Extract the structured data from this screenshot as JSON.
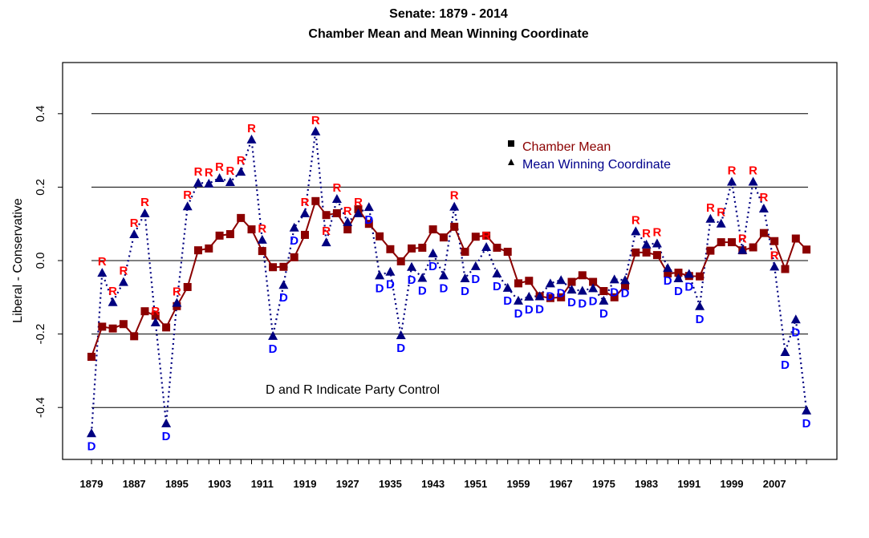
{
  "chart_data": {
    "type": "line",
    "title": "Senate: 1879 - 2014",
    "subtitle": "Chamber Mean and Mean Winning Coordinate",
    "xlabel": "",
    "ylabel": "Liberal - Conservative",
    "ylim": [
      -0.53,
      0.53
    ],
    "yticks": [
      -0.4,
      -0.2,
      0.0,
      0.2,
      0.4
    ],
    "ytick_labels": [
      "-0.4",
      "-0.2",
      "0.0",
      "0.2",
      "0.4"
    ],
    "xtick_labels": [
      "1879",
      "1887",
      "1895",
      "1903",
      "1911",
      "1919",
      "1927",
      "1935",
      "1943",
      "1951",
      "1959",
      "1967",
      "1975",
      "1983",
      "1991",
      "1999",
      "2007"
    ],
    "grid": "horizontal",
    "annotation": "D and R Indicate Party Control",
    "legend": {
      "placement": "top-right",
      "entries": [
        {
          "label": "Chamber Mean",
          "marker": "square",
          "color": "#8B0000"
        },
        {
          "label": "Mean Winning Coordinate",
          "marker": "triangle",
          "color": "#00008B"
        }
      ]
    },
    "colors": {
      "chamber_mean": "#8B0000",
      "mwc": "#000080",
      "party_R": "#FF0000",
      "party_D": "#0000FF",
      "grid": "#000000"
    },
    "x": [
      1879,
      1881,
      1883,
      1885,
      1887,
      1889,
      1891,
      1893,
      1895,
      1897,
      1899,
      1901,
      1903,
      1905,
      1907,
      1909,
      1911,
      1913,
      1915,
      1917,
      1919,
      1921,
      1923,
      1925,
      1927,
      1929,
      1931,
      1933,
      1935,
      1937,
      1939,
      1941,
      1943,
      1945,
      1947,
      1949,
      1951,
      1953,
      1955,
      1957,
      1959,
      1961,
      1963,
      1965,
      1967,
      1969,
      1971,
      1973,
      1975,
      1977,
      1979,
      1981,
      1983,
      1985,
      1987,
      1989,
      1991,
      1993,
      1995,
      1997,
      1999,
      2001,
      2003,
      2005,
      2007,
      2009,
      2011,
      2013
    ],
    "series": [
      {
        "name": "Chamber Mean",
        "values": [
          -0.262,
          -0.18,
          -0.185,
          -0.173,
          -0.206,
          -0.138,
          -0.15,
          -0.182,
          -0.124,
          -0.072,
          0.028,
          0.033,
          0.068,
          0.072,
          0.116,
          0.085,
          0.026,
          -0.018,
          -0.017,
          0.009,
          0.07,
          0.162,
          0.124,
          0.129,
          0.085,
          0.14,
          0.1,
          0.066,
          0.031,
          -0.002,
          0.033,
          0.035,
          0.085,
          0.063,
          0.092,
          0.024,
          0.065,
          0.068,
          0.035,
          0.024,
          -0.062,
          -0.055,
          -0.097,
          -0.102,
          -0.1,
          -0.058,
          -0.04,
          -0.058,
          -0.083,
          -0.1,
          -0.069,
          0.022,
          0.022,
          0.015,
          -0.035,
          -0.033,
          -0.042,
          -0.043,
          0.027,
          0.05,
          0.05,
          0.028,
          0.036,
          0.075,
          0.053,
          -0.023,
          0.06,
          0.03
        ]
      },
      {
        "name": "Mean Winning Coordinate",
        "values": [
          -0.47,
          -0.033,
          -0.113,
          -0.058,
          0.072,
          0.129,
          -0.168,
          -0.443,
          -0.115,
          0.148,
          0.212,
          0.21,
          0.225,
          0.214,
          0.242,
          0.33,
          0.057,
          -0.205,
          -0.066,
          0.09,
          0.129,
          0.352,
          0.05,
          0.168,
          0.105,
          0.129,
          0.146,
          -0.04,
          -0.03,
          -0.203,
          -0.017,
          -0.047,
          0.02,
          -0.04,
          0.147,
          -0.048,
          -0.015,
          0.037,
          -0.035,
          -0.074,
          -0.109,
          -0.098,
          -0.097,
          -0.062,
          -0.053,
          -0.079,
          -0.082,
          -0.075,
          -0.109,
          -0.051,
          -0.053,
          0.08,
          0.044,
          0.047,
          -0.02,
          -0.048,
          -0.036,
          -0.124,
          0.114,
          0.101,
          0.215,
          0.029,
          0.215,
          0.142,
          -0.016,
          -0.249,
          -0.16,
          -0.408
        ]
      }
    ],
    "party_control": [
      "D",
      "R",
      "R",
      "R",
      "R",
      "R",
      "R",
      "D",
      "R",
      "R",
      "R",
      "R",
      "R",
      "R",
      "R",
      "R",
      "R",
      "D",
      "D",
      "D",
      "R",
      "R",
      "R",
      "R",
      "R",
      "R",
      "D",
      "D",
      "D",
      "D",
      "D",
      "D",
      "D",
      "D",
      "R",
      "D",
      "D",
      "R",
      "D",
      "D",
      "D",
      "D",
      "D",
      "D",
      "D",
      "D",
      "D",
      "D",
      "D",
      "D",
      "D",
      "R",
      "R",
      "R",
      "D",
      "D",
      "D",
      "D",
      "R",
      "R",
      "R",
      "R",
      "R",
      "R",
      "R",
      "D",
      "D",
      "D"
    ]
  }
}
